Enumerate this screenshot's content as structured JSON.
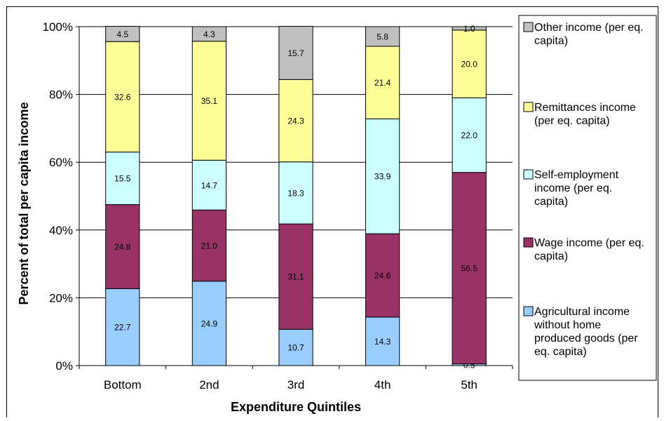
{
  "chart_data": {
    "type": "bar",
    "stacked": true,
    "categories": [
      "Bottom",
      "2nd",
      "3rd",
      "4th",
      "5th"
    ],
    "xlabel": "Expenditure Quintiles",
    "ylabel": "Percent of total per capita income",
    "ylim": [
      0,
      100
    ],
    "yticks": [
      "0%",
      "20%",
      "40%",
      "60%",
      "80%",
      "100%"
    ],
    "grid": true,
    "legend_position": "right",
    "series": [
      {
        "name": "Agricultural income without home produced goods (per eq. capita)",
        "legend_lines": [
          "Agricultural income",
          "without home",
          "produced goods (per",
          "eq. capita)"
        ],
        "color": "#99ccff",
        "values": [
          22.7,
          24.9,
          10.7,
          14.3,
          0.5
        ]
      },
      {
        "name": "Wage income (per eq. capita)",
        "legend_lines": [
          "Wage income (per eq.",
          "capita)"
        ],
        "color": "#993366",
        "values": [
          24.8,
          21.0,
          31.1,
          24.6,
          56.5
        ]
      },
      {
        "name": "Self-employment income (per eq. capita)",
        "legend_lines": [
          "Self-employment",
          "income (per eq.",
          "capita)"
        ],
        "color": "#ccffff",
        "values": [
          15.5,
          14.7,
          18.3,
          33.9,
          22.0
        ]
      },
      {
        "name": "Remittances income (per eq. capita)",
        "legend_lines": [
          "Remittances income",
          "(per eq. capita)"
        ],
        "color": "#ffff99",
        "values": [
          32.6,
          35.1,
          24.3,
          21.4,
          20.0
        ]
      },
      {
        "name": "Other income (per eq. capita)",
        "legend_lines": [
          "Other income (per eq.",
          "capita)"
        ],
        "color": "#c0c0c0",
        "values": [
          4.5,
          4.3,
          15.7,
          5.8,
          1.0
        ]
      }
    ],
    "data_labels": [
      [
        "22.7",
        "24.9",
        "10.7",
        "14.3",
        "0.5"
      ],
      [
        "24.8",
        "21.0",
        "31.1",
        "24.6",
        "56.5"
      ],
      [
        "15.5",
        "14.7",
        "18.3",
        "33.9",
        "22.0"
      ],
      [
        "32.6",
        "35.1",
        "24.3",
        "21.4",
        "20.0"
      ],
      [
        "4.5",
        "4.3",
        "15.7",
        "5.8",
        "1.0"
      ]
    ]
  }
}
